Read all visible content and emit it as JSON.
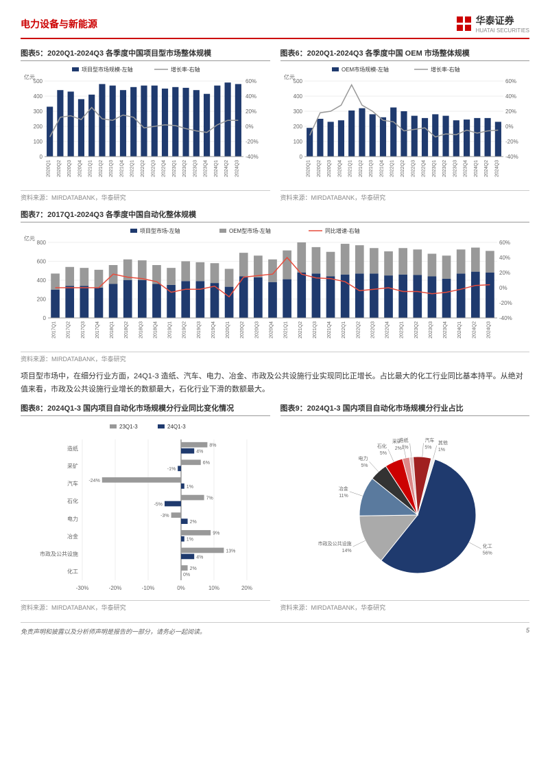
{
  "header": {
    "title": "电力设备与新能源",
    "company": "华泰证券",
    "company_en": "HUATAI SECURITIES"
  },
  "chart5": {
    "title": "图表5：2020Q1-2024Q3 各季度中国项目型市场整体规模",
    "source": "资料来源：MIRDATABANK，华泰研究",
    "y_left_unit": "亿元",
    "y_left_max": 500,
    "y_left_ticks": [
      0,
      100,
      200,
      300,
      400,
      500
    ],
    "y_right_ticks": [
      "-40%",
      "-20%",
      "0%",
      "20%",
      "40%",
      "60%"
    ],
    "legend": [
      "项目型市场规模-左轴",
      "增长率-右轴"
    ],
    "bar_color": "#1f3a6e",
    "line_color": "#999",
    "categories": [
      "2020Q1",
      "2020Q2",
      "2020Q3",
      "2020Q4",
      "2021Q1",
      "2021Q2",
      "2021Q3",
      "2021Q4",
      "2022Q1",
      "2022Q2",
      "2022Q3",
      "2022Q4",
      "2023Q1",
      "2023Q2",
      "2023Q3",
      "2023Q4",
      "2024Q1",
      "2024Q2",
      "2024Q3"
    ],
    "bars": [
      330,
      440,
      430,
      380,
      410,
      480,
      470,
      440,
      460,
      470,
      470,
      450,
      460,
      455,
      440,
      415,
      470,
      490,
      480
    ],
    "line": [
      -14,
      12,
      14,
      9,
      25,
      10,
      8,
      15,
      12,
      -2,
      0,
      2,
      1,
      -3,
      -6,
      -8,
      2,
      8,
      8
    ]
  },
  "chart6": {
    "title": "图表6：2020Q1-2024Q3 各季度中国 OEM 市场整体规模",
    "source": "资料来源：MIRDATABANK，华泰研究",
    "y_left_unit": "亿元",
    "y_left_max": 500,
    "y_left_ticks": [
      0,
      100,
      200,
      300,
      400,
      500
    ],
    "y_right_ticks": [
      "-40%",
      "-20%",
      "0%",
      "20%",
      "40%",
      "60%"
    ],
    "legend": [
      "OEM市场规模-左轴",
      "增长率-右轴"
    ],
    "bar_color": "#1f3a6e",
    "line_color": "#999",
    "categories": [
      "2020Q1",
      "2020Q2",
      "2020Q3",
      "2020Q4",
      "2021Q1",
      "2021Q2",
      "2021Q3",
      "2021Q4",
      "2022Q1",
      "2022Q2",
      "2022Q3",
      "2022Q4",
      "2023Q1",
      "2023Q2",
      "2023Q3",
      "2023Q4",
      "2024Q1",
      "2024Q2",
      "2024Q3"
    ],
    "bars": [
      190,
      250,
      230,
      240,
      305,
      320,
      280,
      260,
      325,
      300,
      270,
      255,
      280,
      270,
      240,
      245,
      255,
      255,
      230
    ],
    "line": [
      -12,
      18,
      20,
      28,
      55,
      28,
      20,
      8,
      6,
      -6,
      -4,
      -2,
      -14,
      -10,
      -11,
      -5,
      -9,
      -6,
      -5
    ]
  },
  "chart7": {
    "title": "图表7：2017Q1-2024Q3 各季度中国自动化整体规模",
    "source": "资料来源：MIRDATABANK，华泰研究",
    "y_left_unit": "亿元",
    "y_left_max": 800,
    "y_left_ticks": [
      0,
      200,
      400,
      600,
      800
    ],
    "y_right_ticks": [
      "-40%",
      "-20%",
      "0%",
      "20%",
      "40%",
      "60%"
    ],
    "legend": [
      "项目型市场-左轴",
      "OEM型市场-左轴",
      "同比增速-右轴"
    ],
    "bar1_color": "#1f3a6e",
    "bar2_color": "#999",
    "line_color": "#e74c3c",
    "categories": [
      "2017Q1",
      "2017Q2",
      "2017Q3",
      "2017Q4",
      "2018Q1",
      "2018Q2",
      "2018Q3",
      "2018Q4",
      "2019Q1",
      "2019Q2",
      "2019Q3",
      "2019Q4",
      "2020Q1",
      "2020Q2",
      "2020Q3",
      "2020Q4",
      "2021Q1",
      "2021Q2",
      "2021Q3",
      "2021Q4",
      "2022Q1",
      "2022Q2",
      "2022Q3",
      "2022Q4",
      "2023Q1",
      "2023Q2",
      "2023Q3",
      "2023Q4",
      "2024Q1",
      "2024Q2",
      "2024Q3"
    ],
    "bars1": [
      300,
      340,
      340,
      320,
      360,
      400,
      400,
      360,
      350,
      390,
      390,
      370,
      330,
      440,
      430,
      380,
      410,
      480,
      470,
      440,
      460,
      470,
      470,
      450,
      460,
      455,
      440,
      415,
      470,
      490,
      480
    ],
    "bars2": [
      170,
      200,
      190,
      190,
      200,
      220,
      210,
      200,
      180,
      210,
      200,
      210,
      190,
      250,
      230,
      240,
      305,
      320,
      280,
      260,
      325,
      300,
      270,
      255,
      280,
      270,
      240,
      245,
      255,
      255,
      230
    ],
    "line": [
      0,
      0,
      0,
      0,
      18,
      14,
      12,
      8,
      -6,
      -2,
      -2,
      2,
      -12,
      14,
      16,
      18,
      40,
      18,
      13,
      12,
      8,
      -4,
      -2,
      0,
      -5,
      -5,
      -8,
      -6,
      -2,
      3,
      4
    ]
  },
  "paragraph": "项目型市场中，在细分行业方面，24Q1-3 造纸、汽车、电力、冶金、市政及公共设施行业实现同比正增长。占比最大的化工行业同比基本持平。从绝对值来看，市政及公共设施行业增长的数额最大，石化行业下滑的数额最大。",
  "chart8": {
    "title": "图表8：2024Q1-3 国内项目自动化市场规模分行业同比变化情况",
    "source": "资料来源：MIRDATABANK，华泰研究",
    "legend": [
      "23Q1-3",
      "24Q1-3"
    ],
    "bar1_color": "#999",
    "bar2_color": "#1f3a6e",
    "x_ticks": [
      "-30%",
      "-20%",
      "-10%",
      "0%",
      "10%",
      "20%"
    ],
    "categories": [
      "造纸",
      "采矿",
      "汽车",
      "石化",
      "电力",
      "冶金",
      "市政及公共设施",
      "化工"
    ],
    "vals23": [
      8,
      6,
      -24,
      7,
      -3,
      9,
      13,
      2
    ],
    "vals24": [
      4,
      -1,
      1,
      -5,
      2,
      1,
      4,
      0
    ]
  },
  "chart9": {
    "title": "图表9：2024Q1-3 国内项目自动化市场规模分行业占比",
    "source": "资料来源：MIRDATABANK，华泰研究",
    "slices": [
      {
        "label": "化工",
        "value": 56,
        "color": "#1f3a6e"
      },
      {
        "label": "市政及公共设施",
        "value": 14,
        "color": "#aaa"
      },
      {
        "label": "冶金",
        "value": 11,
        "color": "#5a7a9e"
      },
      {
        "label": "电力",
        "value": 5,
        "color": "#333"
      },
      {
        "label": "石化",
        "value": 5,
        "color": "#c00"
      },
      {
        "label": "采矿",
        "value": 2,
        "color": "#d88"
      },
      {
        "label": "造纸",
        "value": 1,
        "color": "#e0c0c0"
      },
      {
        "label": "汽车",
        "value": 5,
        "color": "#a02020"
      },
      {
        "label": "其他",
        "value": 1,
        "color": "#eee"
      }
    ]
  },
  "footer": {
    "disclaimer": "免责声明和披露以及分析师声明是报告的一部分，请务必一起阅读。",
    "page": "5"
  }
}
